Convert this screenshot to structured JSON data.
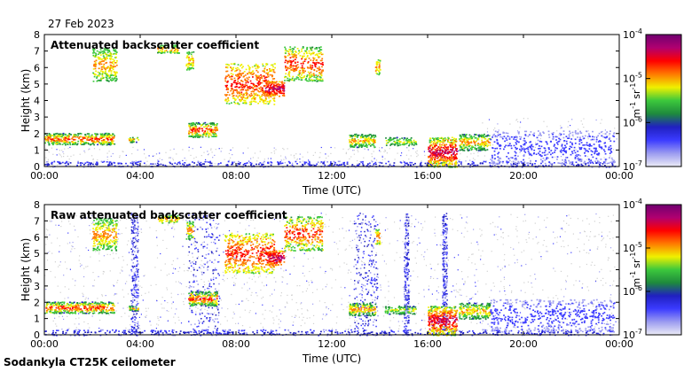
{
  "date_label": "27 Feb 2023",
  "footer_label": "Sodankyla CT25K ceilometer",
  "colors": {
    "background": "#ffffff",
    "no_data": "#d0d0d0",
    "colormap": [
      "#ececf6",
      "#9b9bf0",
      "#3b3bff",
      "#2020c0",
      "#1e8a3c",
      "#3cc83c",
      "#f0f000",
      "#ff7a00",
      "#ff0000",
      "#b00070",
      "#700070"
    ]
  },
  "chart_data": [
    {
      "type": "heatmap",
      "title": "Attenuated backscatter coefficient",
      "xlabel": "Time (UTC)",
      "ylabel": "Height (km)",
      "x_ticks": [
        "00:00",
        "04:00",
        "08:00",
        "12:00",
        "16:00",
        "20:00",
        "00:00"
      ],
      "x_range_hours": [
        0,
        24
      ],
      "y_ticks": [
        "0",
        "1",
        "2",
        "3",
        "4",
        "5",
        "6",
        "7",
        "8"
      ],
      "y_range_km": [
        0,
        8
      ],
      "colorbar": {
        "scale": "log",
        "ticks": [
          "10",
          "10",
          "10",
          "10"
        ],
        "tick_exponents": [
          "-7",
          "-6",
          "-5",
          "-4"
        ],
        "unit": "m",
        "unit_exp1": "-1",
        "unit_sr": "sr",
        "unit_exp2": "-1"
      }
    },
    {
      "type": "heatmap",
      "title": "Raw attenuated backscatter coefficient",
      "xlabel": "Time (UTC)",
      "ylabel": "Height (km)",
      "x_ticks": [
        "00:00",
        "04:00",
        "08:00",
        "12:00",
        "16:00",
        "20:00",
        "00:00"
      ],
      "x_range_hours": [
        0,
        24
      ],
      "y_ticks": [
        "0",
        "1",
        "2",
        "3",
        "4",
        "5",
        "6",
        "7",
        "8"
      ],
      "y_range_km": [
        0,
        8
      ],
      "colorbar": {
        "scale": "log",
        "ticks": [
          "10",
          "10",
          "10",
          "10"
        ],
        "tick_exponents": [
          "-7",
          "-6",
          "-5",
          "-4"
        ],
        "unit": "m",
        "unit_exp1": "-1",
        "unit_sr": "sr",
        "unit_exp2": "-1"
      }
    }
  ]
}
